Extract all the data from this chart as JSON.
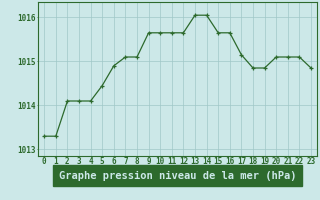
{
  "x": [
    0,
    1,
    2,
    3,
    4,
    5,
    6,
    7,
    8,
    9,
    10,
    11,
    12,
    13,
    14,
    15,
    16,
    17,
    18,
    19,
    20,
    21,
    22,
    23
  ],
  "y": [
    1013.3,
    1013.3,
    1014.1,
    1014.1,
    1014.1,
    1014.45,
    1014.9,
    1015.1,
    1015.1,
    1015.65,
    1015.65,
    1015.65,
    1015.65,
    1016.05,
    1016.05,
    1015.65,
    1015.65,
    1015.15,
    1014.85,
    1014.85,
    1015.1,
    1015.1,
    1015.1,
    1014.85
  ],
  "line_color": "#2d6a2d",
  "marker_color": "#2d6a2d",
  "bg_color": "#cce8e8",
  "grid_color": "#a0c8c8",
  "label_color": "#2d6a2d",
  "xlabel": "Graphe pression niveau de la mer (hPa)",
  "xlabel_bg": "#2d6a2d",
  "xlabel_text_color": "#cce8e8",
  "ylim_min": 1012.85,
  "ylim_max": 1016.35,
  "yticks": [
    1013,
    1014,
    1015,
    1016
  ],
  "xtick_labels": [
    "0",
    "1",
    "2",
    "3",
    "4",
    "5",
    "6",
    "7",
    "8",
    "9",
    "10",
    "11",
    "12",
    "13",
    "14",
    "15",
    "16",
    "17",
    "18",
    "19",
    "20",
    "21",
    "22",
    "23"
  ],
  "fig_bg": "#cce8e8",
  "spine_color": "#2d6a2d",
  "tick_color": "#2d6a2d",
  "xlabel_fontsize": 7.5,
  "tick_fontsize": 5.5
}
